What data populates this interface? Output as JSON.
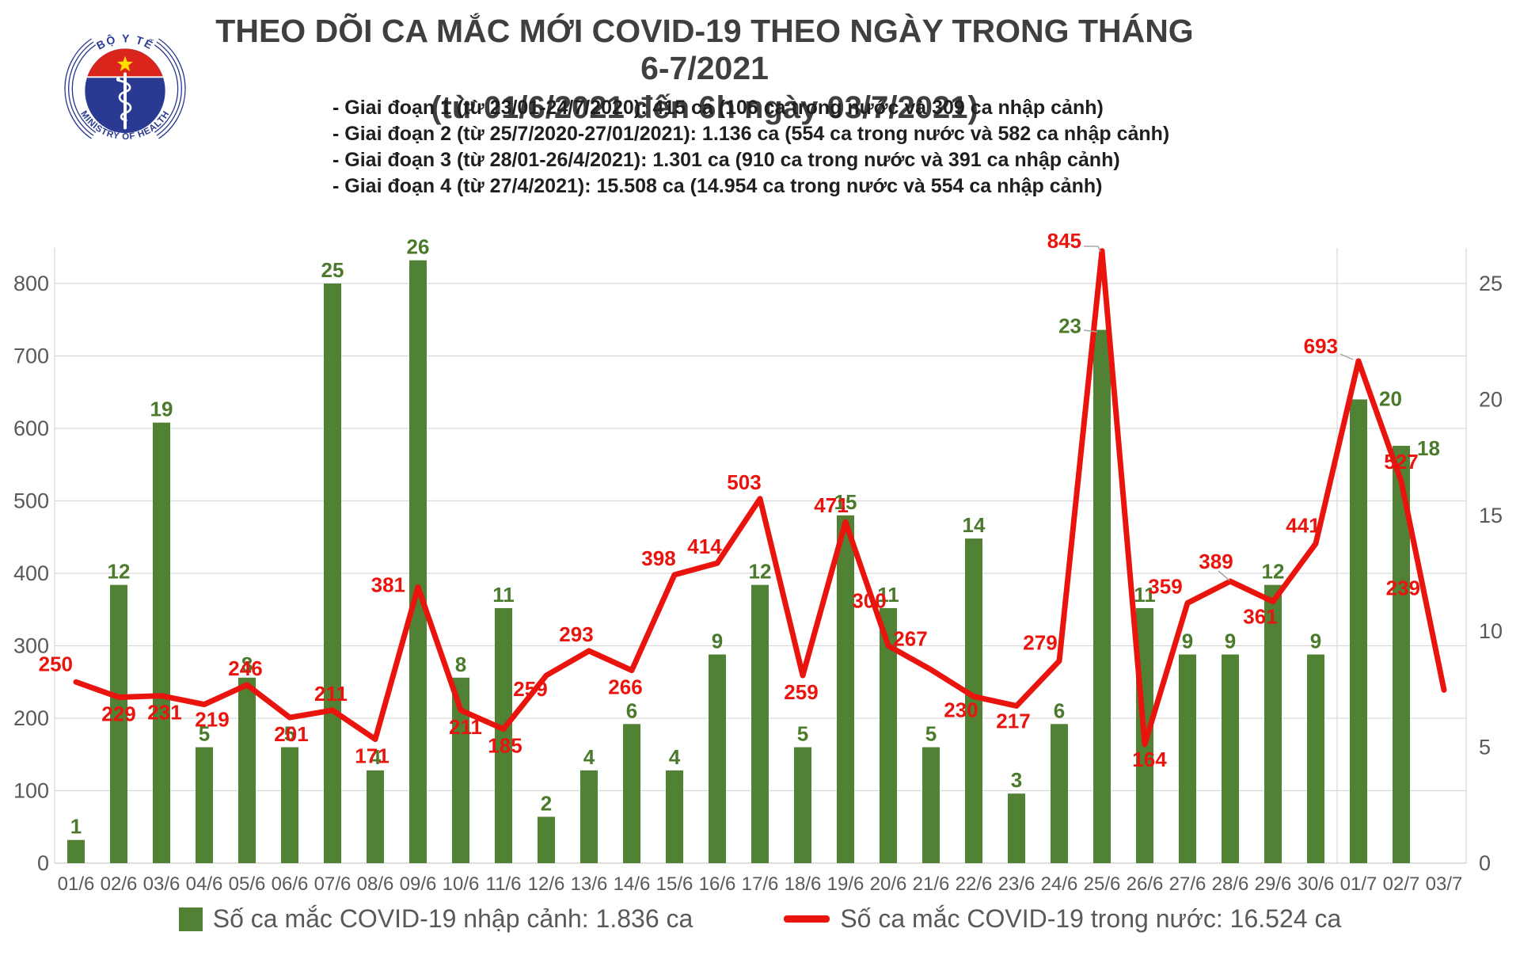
{
  "header": {
    "logo": {
      "top_text": "BỘ Y TẾ",
      "bottom_text": "MINISTRY OF HEALTH"
    },
    "title_line1": "THEO DÕI CA MẮC MỚI COVID-19 THEO NGÀY TRONG THÁNG 6-7/2021",
    "title_line2": "(từ 01/6/2021 đến 6h ngày 03/7/2021)",
    "phases": [
      "- Giai đoạn 1 (từ 23/01-24/7/2020): 415 ca (106 ca trong nước và 309 ca nhập cảnh)",
      "- Giai đoạn 2 (từ 25/7/2020-27/01/2021): 1.136 ca (554 ca trong nước và 582 ca nhập cảnh)",
      "- Giai đoạn 3 (từ 28/01-26/4/2021): 1.301 ca (910 ca trong nước và 391 ca nhập cảnh)",
      "- Giai đoạn 4 (từ 27/4/2021): 15.508 ca (14.954 ca trong nước và 554 ca nhập cảnh)"
    ]
  },
  "chart_data": {
    "type": "bar+line",
    "title": "THEO DÕI CA MẮC MỚI COVID-19 THEO NGÀY TRONG THÁNG 6-7/2021 (từ 01/6/2021 đến 6h ngày 03/7/2021)",
    "categories": [
      "01/6",
      "02/6",
      "03/6",
      "04/6",
      "05/6",
      "06/6",
      "07/6",
      "08/6",
      "09/6",
      "10/6",
      "11/6",
      "12/6",
      "13/6",
      "14/6",
      "15/6",
      "16/6",
      "17/6",
      "18/6",
      "19/6",
      "20/6",
      "21/6",
      "22/6",
      "23/6",
      "24/6",
      "25/6",
      "26/6",
      "27/6",
      "28/6",
      "29/6",
      "30/6",
      "01/7",
      "02/7",
      "03/7"
    ],
    "series": [
      {
        "name": "Số ca mắc COVID-19 nhập cảnh",
        "type": "bar",
        "axis": "right",
        "color": "#518135",
        "values": [
          1,
          12,
          19,
          5,
          8,
          5,
          25,
          4,
          26,
          8,
          11,
          2,
          4,
          6,
          4,
          9,
          12,
          5,
          15,
          11,
          5,
          14,
          3,
          6,
          23,
          11,
          9,
          9,
          12,
          9,
          20,
          18,
          null
        ]
      },
      {
        "name": "Số ca mắc COVID-19 trong nước",
        "type": "line",
        "axis": "left",
        "color": "#ea140e",
        "values": [
          250,
          229,
          231,
          219,
          246,
          201,
          211,
          171,
          381,
          211,
          185,
          259,
          293,
          266,
          398,
          414,
          503,
          259,
          471,
          300,
          267,
          230,
          217,
          279,
          845,
          164,
          359,
          389,
          361,
          441,
          693,
          527,
          239
        ]
      }
    ],
    "left_axis": {
      "ticks": [
        0,
        100,
        200,
        300,
        400,
        500,
        600,
        700,
        800
      ],
      "min": 0,
      "max": 850
    },
    "right_axis": {
      "ticks": [
        0,
        5,
        10,
        15,
        20,
        25
      ],
      "min": 0,
      "max": 26.5
    },
    "grid": true,
    "legend_position": "bottom"
  },
  "legend": {
    "bar_label": "Số ca mắc COVID-19 nhập cảnh: 1.836 ca",
    "line_label": "Số ca mắc COVID-19 trong nước: 16.524 ca"
  },
  "colors": {
    "bar": "#518135",
    "bar_label": "#4c7a2c",
    "line": "#ea140e",
    "grid": "#d9d9d9",
    "axis_text": "#595959",
    "title": "#3f3f3f"
  }
}
